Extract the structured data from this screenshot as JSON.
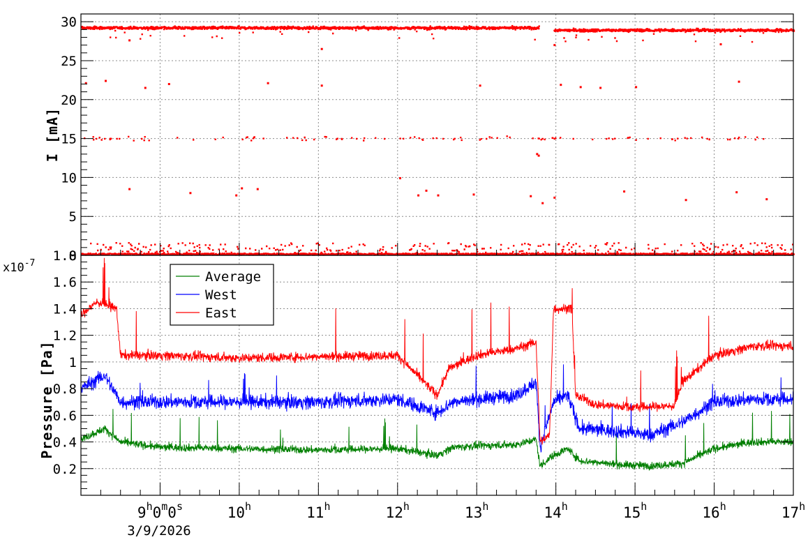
{
  "chart_data": [
    {
      "type": "scatter",
      "ylabel": "I [mA]",
      "ylim": [
        0,
        31
      ],
      "yticks": [
        "0",
        "5",
        "10",
        "15",
        "20",
        "25",
        "30"
      ],
      "ytick_values": [
        0,
        5,
        10,
        15,
        20,
        25,
        30
      ],
      "xlim_hours": [
        8.0,
        17.0
      ],
      "grid": true,
      "series": [
        {
          "color": "#ff0000",
          "clusters": [
            {
              "level": 29.2,
              "spread": 0.6,
              "span_hours": [
                8.0,
                13.78
              ],
              "density": "dense"
            },
            {
              "level": 28.9,
              "spread": 0.6,
              "span_hours": [
                13.97,
                17.0
              ],
              "density": "dense"
            },
            {
              "level": 15.0,
              "spread": 0.8,
              "span_hours": [
                8.0,
                17.0
              ],
              "density": "sparse"
            },
            {
              "level": 0.3,
              "spread": 1.0,
              "span_hours": [
                8.0,
                17.0
              ],
              "density": "dense-baseline"
            }
          ],
          "outliers": [
            [
              8.05,
              22.1
            ],
            [
              8.3,
              22.4
            ],
            [
              8.8,
              21.5
            ],
            [
              9.1,
              22.0
            ],
            [
              10.35,
              22.1
            ],
            [
              11.03,
              21.8
            ],
            [
              13.03,
              21.8
            ],
            [
              14.05,
              21.9
            ],
            [
              14.3,
              21.6
            ],
            [
              14.55,
              21.5
            ],
            [
              15.0,
              21.6
            ],
            [
              16.3,
              22.3
            ],
            [
              8.6,
              8.5
            ],
            [
              9.37,
              8.0
            ],
            [
              9.95,
              7.7
            ],
            [
              10.02,
              8.6
            ],
            [
              10.22,
              8.5
            ],
            [
              12.02,
              9.9
            ],
            [
              12.25,
              7.7
            ],
            [
              12.35,
              8.3
            ],
            [
              12.5,
              7.7
            ],
            [
              12.95,
              7.8
            ],
            [
              13.67,
              7.6
            ],
            [
              13.82,
              6.7
            ],
            [
              13.97,
              7.4
            ],
            [
              14.85,
              8.2
            ],
            [
              15.63,
              7.1
            ],
            [
              16.27,
              8.1
            ],
            [
              16.65,
              7.2
            ],
            [
              11.03,
              26.5
            ],
            [
              13.97,
              27.0
            ],
            [
              8.6,
              27.6
            ],
            [
              16.07,
              27.1
            ],
            [
              13.75,
              13.0
            ],
            [
              13.77,
              12.8
            ]
          ]
        }
      ]
    },
    {
      "type": "line",
      "ylabel": "Pressure [Pa]",
      "scale_label": "x10",
      "scale_exp": "-7",
      "ylim": [
        0.0,
        1.8
      ],
      "yticks": [
        "0.2",
        "0.4",
        "0.6",
        "0.8",
        "1",
        "1.2",
        "1.4",
        "1.6",
        "1.8"
      ],
      "ytick_values": [
        0.2,
        0.4,
        0.6,
        0.8,
        1.0,
        1.2,
        1.4,
        1.6,
        1.8
      ],
      "xlim_hours": [
        8.0,
        17.0
      ],
      "grid": true,
      "legend_position": "top-left",
      "series": [
        {
          "name": "Average",
          "color": "#007f00",
          "profile": [
            [
              8.0,
              0.42
            ],
            [
              8.3,
              0.5
            ],
            [
              8.5,
              0.4
            ],
            [
              9.0,
              0.36
            ],
            [
              10.0,
              0.35
            ],
            [
              11.0,
              0.34
            ],
            [
              12.0,
              0.35
            ],
            [
              12.5,
              0.3
            ],
            [
              12.7,
              0.36
            ],
            [
              13.0,
              0.37
            ],
            [
              13.5,
              0.38
            ],
            [
              13.75,
              0.42
            ],
            [
              13.8,
              0.22
            ],
            [
              13.97,
              0.3
            ],
            [
              14.15,
              0.35
            ],
            [
              14.3,
              0.26
            ],
            [
              14.8,
              0.23
            ],
            [
              15.2,
              0.22
            ],
            [
              15.6,
              0.24
            ],
            [
              16.0,
              0.35
            ],
            [
              16.5,
              0.4
            ],
            [
              17.0,
              0.4
            ]
          ]
        },
        {
          "name": "West",
          "color": "#0000ff",
          "profile": [
            [
              8.0,
              0.8
            ],
            [
              8.3,
              0.9
            ],
            [
              8.5,
              0.7
            ],
            [
              9.0,
              0.7
            ],
            [
              10.0,
              0.7
            ],
            [
              11.0,
              0.7
            ],
            [
              12.0,
              0.72
            ],
            [
              12.5,
              0.62
            ],
            [
              12.7,
              0.7
            ],
            [
              13.0,
              0.72
            ],
            [
              13.5,
              0.75
            ],
            [
              13.75,
              0.85
            ],
            [
              13.8,
              0.36
            ],
            [
              13.97,
              0.7
            ],
            [
              14.15,
              0.75
            ],
            [
              14.3,
              0.5
            ],
            [
              14.8,
              0.48
            ],
            [
              15.2,
              0.45
            ],
            [
              15.6,
              0.55
            ],
            [
              16.0,
              0.7
            ],
            [
              16.5,
              0.72
            ],
            [
              17.0,
              0.72
            ]
          ]
        },
        {
          "name": "East",
          "color": "#ff0000",
          "profile": [
            [
              8.0,
              1.35
            ],
            [
              8.2,
              1.45
            ],
            [
              8.45,
              1.4
            ],
            [
              8.5,
              1.05
            ],
            [
              9.0,
              1.05
            ],
            [
              10.0,
              1.03
            ],
            [
              11.0,
              1.04
            ],
            [
              12.0,
              1.05
            ],
            [
              12.5,
              0.75
            ],
            [
              12.65,
              0.95
            ],
            [
              13.0,
              1.05
            ],
            [
              13.5,
              1.1
            ],
            [
              13.75,
              1.15
            ],
            [
              13.8,
              0.4
            ],
            [
              13.92,
              0.45
            ],
            [
              13.97,
              1.4
            ],
            [
              14.2,
              1.4
            ],
            [
              14.25,
              0.75
            ],
            [
              14.5,
              0.68
            ],
            [
              15.0,
              0.66
            ],
            [
              15.5,
              0.67
            ],
            [
              15.6,
              0.85
            ],
            [
              16.0,
              1.05
            ],
            [
              16.5,
              1.12
            ],
            [
              17.0,
              1.12
            ]
          ]
        }
      ]
    }
  ],
  "x_axis": {
    "tick_hours": [
      9,
      10,
      11,
      12,
      13,
      14,
      15,
      16,
      17
    ],
    "tick_labels": [
      {
        "base": "9",
        "sup1": "h",
        "mid1": "0",
        "sup2": "m",
        "mid2": "0",
        "sup3": "s"
      },
      {
        "base": "10",
        "sup1": "h"
      },
      {
        "base": "11",
        "sup1": "h"
      },
      {
        "base": "12",
        "sup1": "h"
      },
      {
        "base": "13",
        "sup1": "h"
      },
      {
        "base": "14",
        "sup1": "h"
      },
      {
        "base": "15",
        "sup1": "h"
      },
      {
        "base": "16",
        "sup1": "h"
      },
      {
        "base": "17",
        "sup1": "h"
      }
    ],
    "date_label": "3/9/2026"
  }
}
